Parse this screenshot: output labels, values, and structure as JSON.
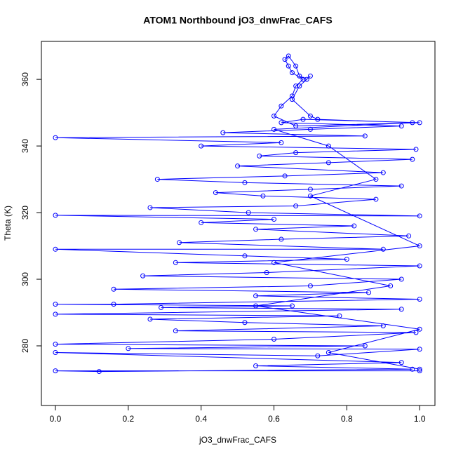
{
  "chart_data": {
    "type": "line",
    "title": "ATOM1 Northbound jO3_dnwFrac_CAFS",
    "x_label": "jO3_dnwFrac_CAFS",
    "y_label": "Theta (K)",
    "x": [
      1.0,
      0.0,
      0.12,
      0.98,
      0.55,
      0.95,
      0.0,
      0.72,
      1.0,
      0.2,
      0.85,
      0.0,
      0.6,
      0.99,
      0.33,
      0.9,
      0.52,
      0.26,
      0.78,
      0.0,
      0.95,
      0.29,
      0.65,
      0.0,
      0.16,
      1.0,
      0.55,
      0.86,
      0.16,
      0.7,
      0.95,
      0.24,
      0.58,
      1.0,
      0.33,
      0.8,
      0.52,
      0.0,
      0.9,
      0.34,
      0.62,
      0.97,
      0.55,
      0.82,
      0.4,
      0.6,
      0.0,
      1.0,
      0.53,
      0.26,
      0.66,
      0.88,
      0.57,
      0.44,
      0.7,
      0.95,
      0.52,
      0.28,
      0.63,
      0.9,
      0.5,
      0.75,
      0.98,
      0.56,
      0.66,
      0.99,
      0.4,
      0.62,
      0.0,
      0.85,
      0.46,
      0.7,
      0.95,
      0.62,
      0.68,
      1.0,
      0.66,
      0.6,
      0.62,
      0.65,
      0.66,
      0.68,
      0.65,
      0.64,
      0.63,
      0.64,
      0.66,
      0.67,
      0.69,
      0.7,
      0.67,
      0.65,
      0.7,
      0.72,
      0.98,
      0.6,
      0.75,
      0.88,
      0.7,
      1.0,
      0.6,
      0.92,
      0.55,
      1.0,
      0.75,
      1.0
    ],
    "series": [
      {
        "color": "#0000ff",
        "marker": "circle",
        "values": [
          272.5,
          272.5,
          272.3,
          273,
          274,
          275,
          278,
          277,
          279,
          279.2,
          280,
          280.5,
          282,
          284,
          284.5,
          286,
          287,
          288,
          289,
          289.5,
          291,
          291.5,
          292,
          292.5,
          292.5,
          294,
          295,
          296,
          297,
          298,
          300,
          301,
          302,
          304,
          305,
          306,
          307,
          309,
          309,
          311,
          312,
          313,
          315,
          316,
          317,
          318,
          319.2,
          319,
          320,
          321.5,
          322,
          324,
          325,
          326,
          327,
          328,
          329,
          330,
          331,
          332,
          334,
          335,
          336,
          337,
          338,
          339,
          340,
          341,
          342.5,
          343,
          344,
          345,
          346,
          347,
          348,
          347,
          346,
          349,
          352,
          355,
          358,
          360,
          362,
          364,
          366,
          367,
          364,
          361,
          360,
          361,
          358,
          354,
          349,
          348,
          347,
          345,
          340,
          330,
          325,
          310,
          305,
          298,
          292,
          285,
          278,
          273
        ]
      }
    ],
    "xlim": [
      -0.0385,
      1.042
    ],
    "ylim": [
      262.1,
      371.4
    ],
    "xticks": [
      {
        "value": 0,
        "label": "0.0"
      },
      0.2,
      0.4,
      0.6,
      0.8,
      {
        "value": 1,
        "label": "1.0"
      }
    ],
    "yticks": [
      280,
      300,
      320,
      340,
      360
    ],
    "grid": false
  }
}
